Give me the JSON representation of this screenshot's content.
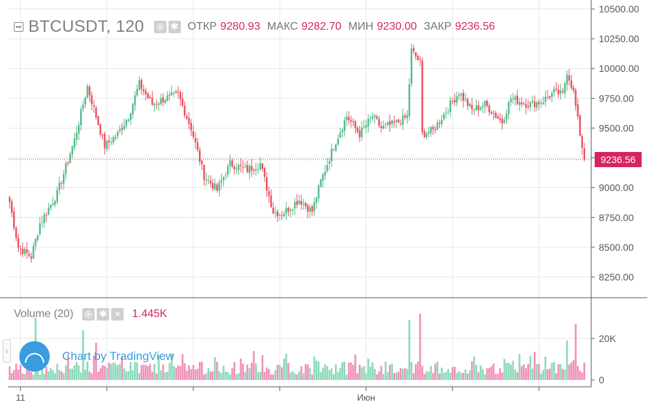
{
  "header": {
    "symbol": "BTCUSDT, 120",
    "open_label": "ОТКР",
    "open_value": "9280.93",
    "high_label": "МАКС",
    "high_value": "9282.70",
    "low_label": "МИН",
    "low_value": "9230.00",
    "close_label": "ЗАКР",
    "close_value": "9236.56"
  },
  "volume_header": {
    "name": "Volume (20)",
    "value": "1.445K"
  },
  "watermark": "Chart by TradingView",
  "last_price_label": "9236.56",
  "colors": {
    "up": "#53b987",
    "down": "#eb4d5c",
    "vol_up": "#8ad9b8",
    "vol_down": "#f08fb8",
    "accent": "#d6255c",
    "grid": "#e6e6e6"
  },
  "chart_data": {
    "type": "candlestick",
    "title": "BTCUSDT, 120",
    "price_axis": {
      "min": 8100,
      "max": 10550,
      "ticks": [
        "10500.00",
        "10250.00",
        "10000.00",
        "9750.00",
        "9500.00",
        "9250.00",
        "9000.00",
        "8750.00",
        "8500.00",
        "8250.00"
      ]
    },
    "volume_axis": {
      "min": 0,
      "max": 34000,
      "ticks": [
        "20K",
        "0"
      ]
    },
    "time_ticks": [
      {
        "label": "11",
        "index": 5
      },
      {
        "label": "",
        "index": 45
      },
      {
        "label": "",
        "index": 85
      },
      {
        "label": "",
        "index": 125
      },
      {
        "label": "Июн",
        "index": 165
      },
      {
        "label": "",
        "index": 205
      },
      {
        "label": "",
        "index": 245
      }
    ],
    "last_price": 9236.56,
    "key_points": [
      {
        "i": 0,
        "price": 8880
      },
      {
        "i": 4,
        "price": 8500
      },
      {
        "i": 10,
        "price": 8420
      },
      {
        "i": 14,
        "price": 8700
      },
      {
        "i": 22,
        "price": 8950
      },
      {
        "i": 30,
        "price": 9400
      },
      {
        "i": 36,
        "price": 9850
      },
      {
        "i": 40,
        "price": 9600
      },
      {
        "i": 44,
        "price": 9350
      },
      {
        "i": 50,
        "price": 9450
      },
      {
        "i": 55,
        "price": 9600
      },
      {
        "i": 60,
        "price": 9870
      },
      {
        "i": 66,
        "price": 9700
      },
      {
        "i": 72,
        "price": 9750
      },
      {
        "i": 78,
        "price": 9780
      },
      {
        "i": 84,
        "price": 9500
      },
      {
        "i": 90,
        "price": 9100
      },
      {
        "i": 96,
        "price": 8980
      },
      {
        "i": 102,
        "price": 9200
      },
      {
        "i": 110,
        "price": 9150
      },
      {
        "i": 116,
        "price": 9200
      },
      {
        "i": 122,
        "price": 8800
      },
      {
        "i": 126,
        "price": 8780
      },
      {
        "i": 134,
        "price": 8900
      },
      {
        "i": 140,
        "price": 8800
      },
      {
        "i": 144,
        "price": 9050
      },
      {
        "i": 150,
        "price": 9350
      },
      {
        "i": 156,
        "price": 9600
      },
      {
        "i": 162,
        "price": 9450
      },
      {
        "i": 168,
        "price": 9600
      },
      {
        "i": 172,
        "price": 9500
      },
      {
        "i": 180,
        "price": 9550
      },
      {
        "i": 184,
        "price": 9600
      },
      {
        "i": 186,
        "price": 10150
      },
      {
        "i": 190,
        "price": 10050
      },
      {
        "i": 191,
        "price": 9450
      },
      {
        "i": 196,
        "price": 9480
      },
      {
        "i": 204,
        "price": 9700
      },
      {
        "i": 208,
        "price": 9800
      },
      {
        "i": 214,
        "price": 9650
      },
      {
        "i": 220,
        "price": 9700
      },
      {
        "i": 228,
        "price": 9550
      },
      {
        "i": 232,
        "price": 9750
      },
      {
        "i": 240,
        "price": 9700
      },
      {
        "i": 246,
        "price": 9720
      },
      {
        "i": 252,
        "price": 9800
      },
      {
        "i": 256,
        "price": 9780
      },
      {
        "i": 258,
        "price": 9980
      },
      {
        "i": 261,
        "price": 9800
      },
      {
        "i": 264,
        "price": 9450
      },
      {
        "i": 266,
        "price": 9240
      }
    ],
    "volume_spikes": [
      {
        "i": 12,
        "value": 30000
      },
      {
        "i": 34,
        "value": 24000
      },
      {
        "i": 40,
        "value": 18000
      },
      {
        "i": 95,
        "value": 11000
      },
      {
        "i": 185,
        "value": 29000
      },
      {
        "i": 190,
        "value": 32000
      },
      {
        "i": 262,
        "value": 27000
      },
      {
        "i": 258,
        "value": 19000
      }
    ]
  }
}
